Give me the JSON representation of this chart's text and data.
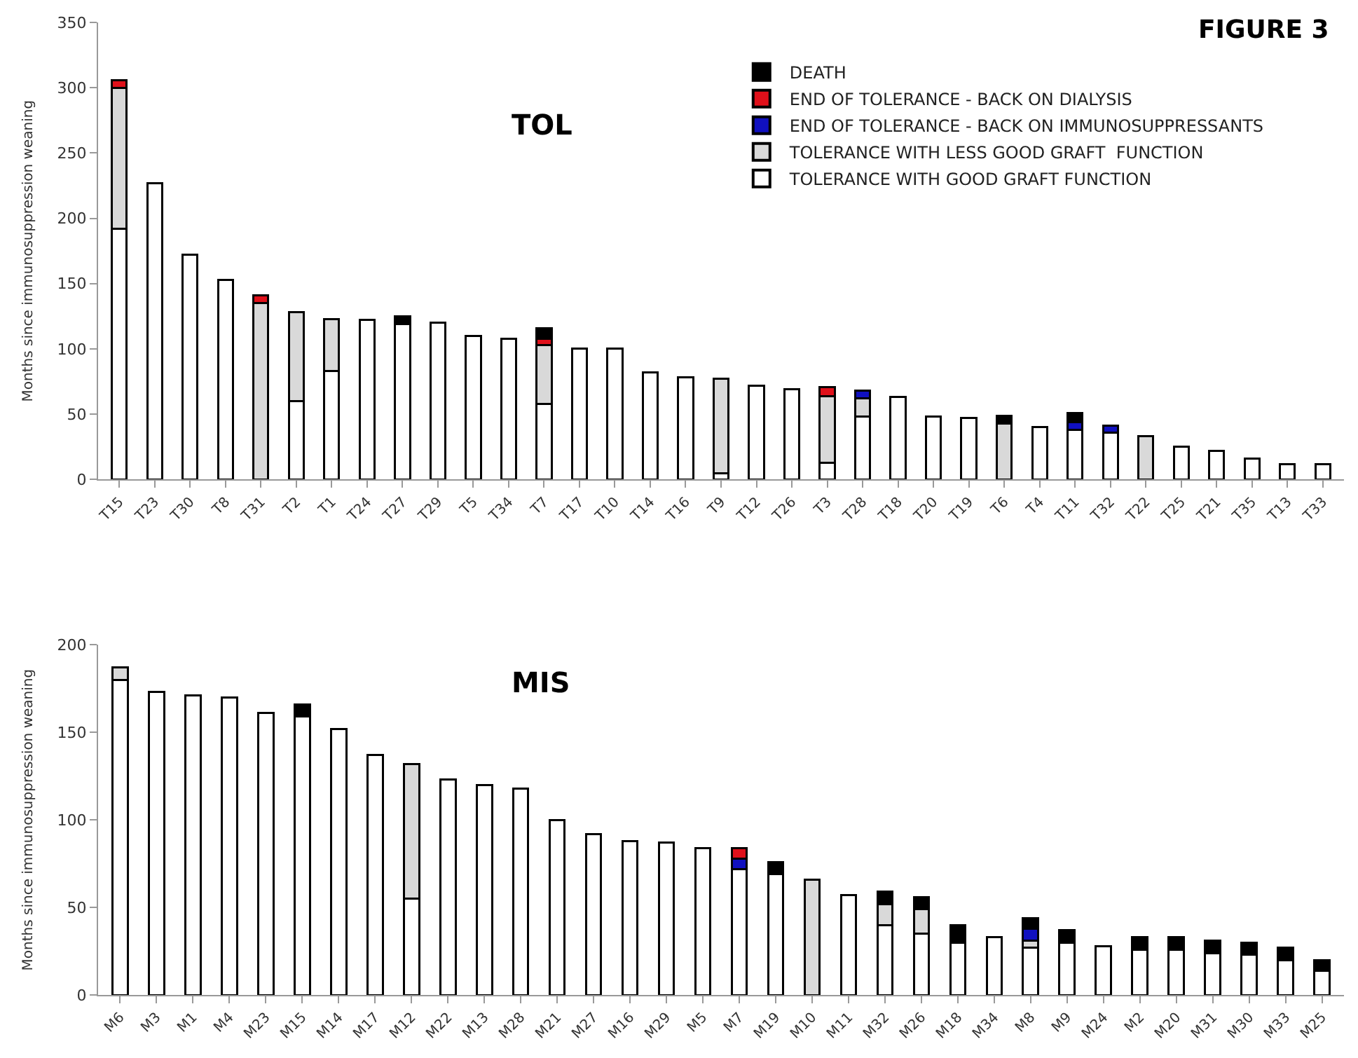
{
  "chart_data": [
    {
      "type": "bar",
      "title": "TOL",
      "ylabel": "Months since immunosuppression weaning",
      "stacked": true,
      "legend": "top right",
      "annotations": [
        "FIGURE 3"
      ],
      "categories": [
        "T15",
        "T23",
        "T30",
        "T8",
        "T31",
        "T2",
        "T1",
        "T24",
        "T27",
        "T29",
        "T5",
        "T34",
        "T7",
        "T17",
        "T10",
        "T14",
        "T16",
        "T9",
        "T12",
        "T26",
        "T3",
        "T28",
        "T18",
        "T20",
        "T19",
        "T6",
        "T4",
        "T11",
        "T32",
        "T22",
        "T25",
        "T21",
        "T35",
        "T13",
        "T33"
      ],
      "ylim": [
        0,
        350
      ],
      "yticks": [
        0,
        50,
        100,
        150,
        200,
        250,
        300,
        350
      ],
      "series": [
        {
          "name": "TOLERANCE WITH GOOD GRAFT FUNCTION",
          "color": "#ffffff",
          "values": [
            192,
            227,
            172,
            153,
            0,
            60,
            83,
            122,
            119,
            120,
            110,
            108,
            58,
            100,
            100,
            82,
            78,
            5,
            72,
            69,
            13,
            48,
            63,
            48,
            47,
            0,
            40,
            38,
            36,
            0,
            25,
            22,
            16,
            12,
            12
          ]
        },
        {
          "name": "TOLERANCE WITH LESS GOOD GRAFT  FUNCTION",
          "color": "#d9d9d9",
          "values": [
            108,
            0,
            0,
            0,
            135,
            68,
            40,
            0,
            0,
            0,
            0,
            0,
            45,
            0,
            0,
            0,
            0,
            72,
            0,
            0,
            51,
            14,
            0,
            0,
            0,
            43,
            0,
            0,
            0,
            33,
            0,
            0,
            0,
            0,
            0
          ]
        },
        {
          "name": "END OF TOLERANCE - BACK ON IMMUNOSUPPRESSANTS",
          "color": "#1010c0",
          "values": [
            0,
            0,
            0,
            0,
            0,
            0,
            0,
            0,
            0,
            0,
            0,
            0,
            0,
            0,
            0,
            0,
            0,
            0,
            0,
            0,
            0,
            6,
            0,
            0,
            0,
            0,
            0,
            6,
            5,
            0,
            0,
            0,
            0,
            0,
            0
          ]
        },
        {
          "name": "END OF TOLERANCE - BACK ON DIALYSIS",
          "color": "#e0101a",
          "values": [
            6,
            0,
            0,
            0,
            6,
            0,
            0,
            0,
            0,
            0,
            0,
            0,
            5,
            0,
            0,
            0,
            0,
            0,
            0,
            0,
            7,
            0,
            0,
            0,
            0,
            0,
            0,
            0,
            0,
            0,
            0,
            0,
            0,
            0,
            0
          ]
        },
        {
          "name": "DEATH",
          "color": "#000000",
          "values": [
            0,
            0,
            0,
            0,
            0,
            0,
            0,
            0,
            6,
            0,
            0,
            0,
            8,
            0,
            0,
            0,
            0,
            0,
            0,
            0,
            0,
            0,
            0,
            0,
            0,
            6,
            0,
            7,
            0,
            0,
            0,
            0,
            0,
            0,
            0
          ]
        }
      ]
    },
    {
      "type": "bar",
      "title": "MIS",
      "ylabel": "Months since immunosuppression weaning",
      "stacked": true,
      "legend": false,
      "categories": [
        "M6",
        "M3",
        "M1",
        "M4",
        "M23",
        "M15",
        "M14",
        "M17",
        "M12",
        "M22",
        "M13",
        "M28",
        "M21",
        "M27",
        "M16",
        "M29",
        "M5",
        "M7",
        "M19",
        "M10",
        "M11",
        "M32",
        "M26",
        "M18",
        "M34",
        "M8",
        "M9",
        "M24",
        "M2",
        "M20",
        "M31",
        "M30",
        "M33",
        "M25"
      ],
      "ylim": [
        0,
        200
      ],
      "yticks": [
        0,
        50,
        100,
        150,
        200
      ],
      "series": [
        {
          "color": "#ffffff",
          "values": [
            180,
            173,
            171,
            170,
            161,
            159,
            152,
            137,
            55,
            123,
            120,
            118,
            100,
            92,
            88,
            87,
            84,
            72,
            69,
            0,
            57,
            40,
            35,
            30,
            33,
            27,
            30,
            28,
            26,
            26,
            24,
            23,
            20,
            14
          ]
        },
        {
          "color": "#d9d9d9",
          "values": [
            7,
            0,
            0,
            0,
            0,
            0,
            0,
            0,
            77,
            0,
            0,
            0,
            0,
            0,
            0,
            0,
            0,
            0,
            0,
            66,
            0,
            12,
            14,
            0,
            0,
            4,
            0,
            0,
            0,
            0,
            0,
            0,
            0,
            0
          ]
        },
        {
          "color": "#1010c0",
          "values": [
            0,
            0,
            0,
            0,
            0,
            0,
            0,
            0,
            0,
            0,
            0,
            0,
            0,
            0,
            0,
            0,
            0,
            6,
            0,
            0,
            0,
            0,
            0,
            0,
            0,
            7,
            0,
            0,
            0,
            0,
            0,
            0,
            0,
            0
          ]
        },
        {
          "color": "#e0101a",
          "values": [
            0,
            0,
            0,
            0,
            0,
            0,
            0,
            0,
            0,
            0,
            0,
            0,
            0,
            0,
            0,
            0,
            0,
            6,
            0,
            0,
            0,
            0,
            0,
            0,
            0,
            0,
            0,
            0,
            0,
            0,
            0,
            0,
            0,
            0
          ]
        },
        {
          "color": "#000000",
          "values": [
            0,
            0,
            0,
            0,
            0,
            7,
            0,
            0,
            0,
            0,
            0,
            0,
            0,
            0,
            0,
            0,
            0,
            0,
            7,
            0,
            0,
            7,
            7,
            10,
            0,
            6,
            7,
            0,
            7,
            7,
            7,
            7,
            7,
            6
          ]
        }
      ]
    }
  ]
}
